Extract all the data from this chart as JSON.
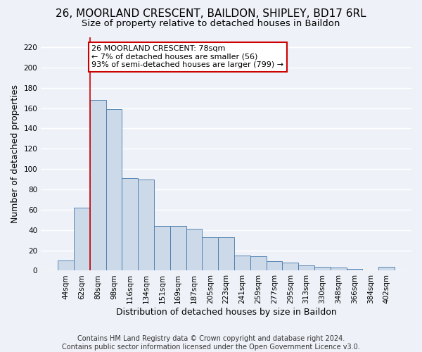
{
  "title1": "26, MOORLAND CRESCENT, BAILDON, SHIPLEY, BD17 6RL",
  "title2": "Size of property relative to detached houses in Baildon",
  "xlabel": "Distribution of detached houses by size in Baildon",
  "ylabel": "Number of detached properties",
  "categories": [
    "44sqm",
    "62sqm",
    "80sqm",
    "98sqm",
    "116sqm",
    "134sqm",
    "151sqm",
    "169sqm",
    "187sqm",
    "205sqm",
    "223sqm",
    "241sqm",
    "259sqm",
    "277sqm",
    "295sqm",
    "313sqm",
    "330sqm",
    "348sqm",
    "366sqm",
    "384sqm",
    "402sqm"
  ],
  "values": [
    10,
    62,
    168,
    159,
    91,
    90,
    44,
    44,
    41,
    33,
    33,
    15,
    14,
    9,
    8,
    5,
    4,
    3,
    2,
    0,
    4
  ],
  "bar_color": "#ccd9e8",
  "bar_edge_color": "#4477aa",
  "marker_line_color": "#cc0000",
  "annotation_title": "26 MOORLAND CRESCENT: 78sqm",
  "annotation_line1": "← 7% of detached houses are smaller (56)",
  "annotation_line2": "93% of semi-detached houses are larger (799) →",
  "annotation_box_color": "#ffffff",
  "annotation_box_edge_color": "#cc0000",
  "ylim": [
    0,
    230
  ],
  "yticks": [
    0,
    20,
    40,
    60,
    80,
    100,
    120,
    140,
    160,
    180,
    200,
    220
  ],
  "footnote1": "Contains HM Land Registry data © Crown copyright and database right 2024.",
  "footnote2": "Contains public sector information licensed under the Open Government Licence v3.0.",
  "background_color": "#eef2f8",
  "plot_background_color": "#eef2f8",
  "grid_color": "#ffffff",
  "title1_fontsize": 11,
  "title2_fontsize": 9.5,
  "axis_label_fontsize": 9,
  "tick_fontsize": 7.5,
  "footnote_fontsize": 7,
  "annotation_fontsize": 8
}
